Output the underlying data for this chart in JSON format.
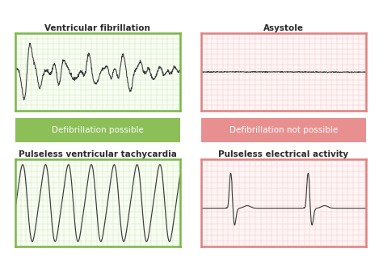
{
  "title_vf": "Ventricular fibrillation",
  "title_asystole": "Asystole",
  "title_pvt": "Pulseless ventricular tachycardia",
  "title_pea": "Pulseless electrical activity",
  "label_defib_yes": "Defibrillation possible",
  "label_defib_no": "Defibrillation not possible",
  "green_border": "#7ab648",
  "green_fill": "#8cbf58",
  "green_bg": "#f8fdf4",
  "red_border": "#e08080",
  "red_fill": "#e89090",
  "red_bg": "#fef5f5",
  "line_color": "#3a3a3a",
  "grid_color_red": "#f5c8c8",
  "grid_color_green": "#d0ebb8",
  "bg_color": "#ffffff",
  "title_fontsize": 7.5,
  "label_fontsize": 7.5
}
